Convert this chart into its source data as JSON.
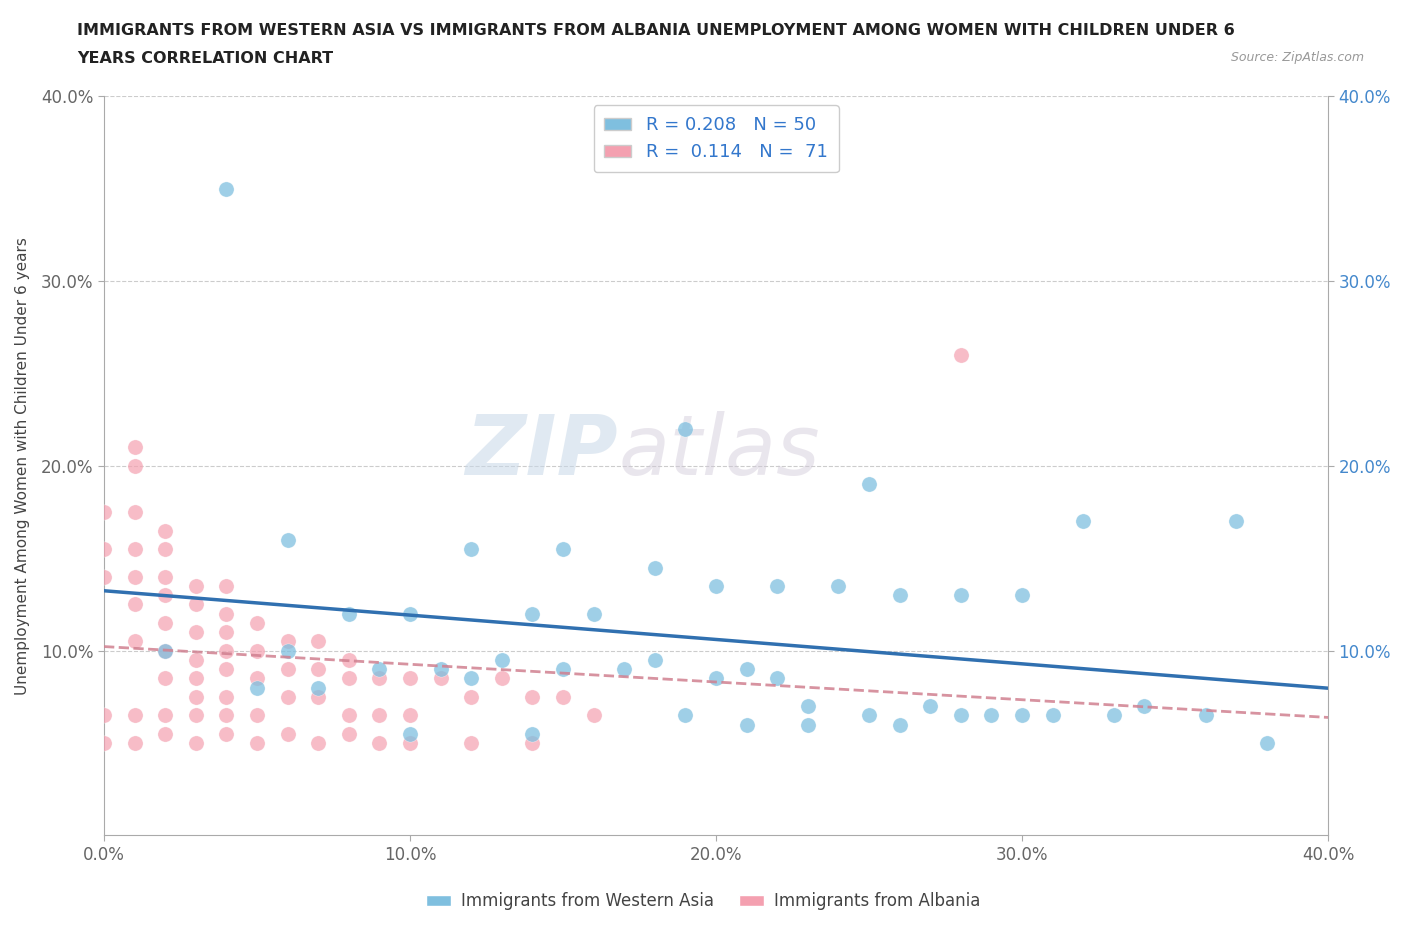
{
  "title_line1": "IMMIGRANTS FROM WESTERN ASIA VS IMMIGRANTS FROM ALBANIA UNEMPLOYMENT AMONG WOMEN WITH CHILDREN UNDER 6",
  "title_line2": "YEARS CORRELATION CHART",
  "source": "Source: ZipAtlas.com",
  "ylabel": "Unemployment Among Women with Children Under 6 years",
  "xlim": [
    0.0,
    0.4
  ],
  "ylim": [
    0.0,
    0.4
  ],
  "xtick_labels": [
    "0.0%",
    "10.0%",
    "20.0%",
    "30.0%",
    "40.0%"
  ],
  "xtick_vals": [
    0.0,
    0.1,
    0.2,
    0.3,
    0.4
  ],
  "ytick_labels": [
    "10.0%",
    "20.0%",
    "30.0%",
    "40.0%"
  ],
  "ytick_vals": [
    0.1,
    0.2,
    0.3,
    0.4
  ],
  "blue_R": 0.208,
  "blue_N": 50,
  "pink_R": 0.114,
  "pink_N": 71,
  "blue_color": "#7fbfdf",
  "pink_color": "#f4a0b0",
  "blue_line_color": "#3070b0",
  "pink_line_color": "#d08090",
  "watermark_zip": "ZIP",
  "watermark_atlas": "atlas",
  "legend_labels": [
    "Immigrants from Western Asia",
    "Immigrants from Albania"
  ],
  "blue_scatter_x": [
    0.04,
    0.19,
    0.25,
    0.37,
    0.06,
    0.12,
    0.15,
    0.18,
    0.22,
    0.28,
    0.32,
    0.08,
    0.1,
    0.14,
    0.16,
    0.2,
    0.24,
    0.26,
    0.3,
    0.34,
    0.38,
    0.02,
    0.06,
    0.09,
    0.11,
    0.13,
    0.17,
    0.21,
    0.23,
    0.27,
    0.29,
    0.31,
    0.33,
    0.36,
    0.05,
    0.07,
    0.12,
    0.15,
    0.18,
    0.2,
    0.22,
    0.25,
    0.28,
    0.3,
    0.19,
    0.21,
    0.23,
    0.26,
    0.1,
    0.14
  ],
  "blue_scatter_y": [
    0.35,
    0.22,
    0.19,
    0.17,
    0.16,
    0.155,
    0.155,
    0.145,
    0.135,
    0.13,
    0.17,
    0.12,
    0.12,
    0.12,
    0.12,
    0.135,
    0.135,
    0.13,
    0.13,
    0.07,
    0.05,
    0.1,
    0.1,
    0.09,
    0.09,
    0.095,
    0.09,
    0.09,
    0.07,
    0.07,
    0.065,
    0.065,
    0.065,
    0.065,
    0.08,
    0.08,
    0.085,
    0.09,
    0.095,
    0.085,
    0.085,
    0.065,
    0.065,
    0.065,
    0.065,
    0.06,
    0.06,
    0.06,
    0.055,
    0.055
  ],
  "pink_scatter_x": [
    0.0,
    0.0,
    0.0,
    0.0,
    0.01,
    0.01,
    0.01,
    0.01,
    0.01,
    0.01,
    0.01,
    0.01,
    0.02,
    0.02,
    0.02,
    0.02,
    0.02,
    0.02,
    0.02,
    0.02,
    0.03,
    0.03,
    0.03,
    0.03,
    0.03,
    0.03,
    0.03,
    0.04,
    0.04,
    0.04,
    0.04,
    0.04,
    0.04,
    0.05,
    0.05,
    0.05,
    0.05,
    0.06,
    0.06,
    0.06,
    0.07,
    0.07,
    0.07,
    0.08,
    0.08,
    0.08,
    0.09,
    0.09,
    0.1,
    0.1,
    0.11,
    0.12,
    0.13,
    0.14,
    0.15,
    0.16,
    0.0,
    0.01,
    0.02,
    0.03,
    0.04,
    0.05,
    0.06,
    0.07,
    0.08,
    0.09,
    0.1,
    0.12,
    0.14,
    0.28,
    0.04
  ],
  "pink_scatter_y": [
    0.175,
    0.155,
    0.14,
    0.065,
    0.21,
    0.2,
    0.175,
    0.155,
    0.14,
    0.125,
    0.105,
    0.065,
    0.165,
    0.155,
    0.14,
    0.13,
    0.115,
    0.1,
    0.085,
    0.065,
    0.135,
    0.125,
    0.11,
    0.095,
    0.085,
    0.075,
    0.065,
    0.12,
    0.11,
    0.1,
    0.09,
    0.075,
    0.065,
    0.115,
    0.1,
    0.085,
    0.065,
    0.105,
    0.09,
    0.075,
    0.105,
    0.09,
    0.075,
    0.095,
    0.085,
    0.065,
    0.085,
    0.065,
    0.085,
    0.065,
    0.085,
    0.075,
    0.085,
    0.075,
    0.075,
    0.065,
    0.05,
    0.05,
    0.055,
    0.05,
    0.055,
    0.05,
    0.055,
    0.05,
    0.055,
    0.05,
    0.05,
    0.05,
    0.05,
    0.26,
    0.135
  ]
}
